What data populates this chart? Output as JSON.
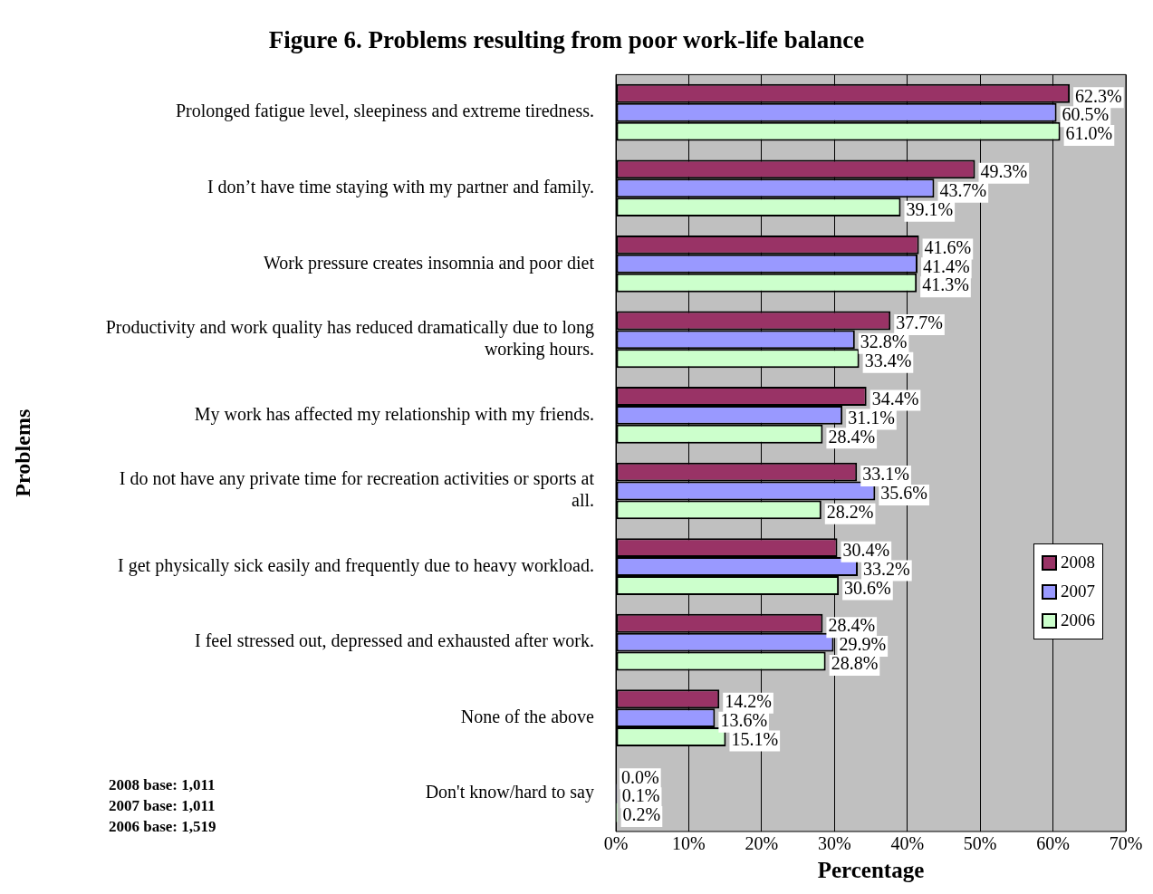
{
  "chart_data": {
    "type": "bar",
    "orientation": "horizontal",
    "title": "Figure 6. Problems resulting from poor work-life balance",
    "xlabel": "Percentage",
    "ylabel": "Problems",
    "categories": [
      "Prolonged fatigue level, sleepiness and extreme tiredness.",
      "I don’t have time staying with my partner and family.",
      "Work pressure creates insomnia and poor diet",
      "Productivity and work quality has reduced dramatically due to long working hours.",
      "My work has affected my relationship with my friends.",
      "I do not have any private time for recreation activities or sports at all.",
      "I get physically sick easily and frequently due to heavy workload.",
      "I feel stressed out, depressed and exhausted after work.",
      "None of the above",
      "Don't know/hard to say"
    ],
    "series": [
      {
        "name": "2008",
        "color": "#993366",
        "values": [
          62.3,
          49.3,
          41.6,
          37.7,
          34.4,
          33.1,
          30.4,
          28.4,
          14.2,
          0.0
        ],
        "value_labels": [
          "62.3%",
          "49.3%",
          "41.6%",
          "37.7%",
          "34.4%",
          "33.1%",
          "30.4%",
          "28.4%",
          "14.2%",
          "0.0%"
        ]
      },
      {
        "name": "2007",
        "color": "#9999ff",
        "values": [
          60.5,
          43.7,
          41.4,
          32.8,
          31.1,
          35.6,
          33.2,
          29.9,
          13.6,
          0.1
        ],
        "value_labels": [
          "60.5%",
          "43.7%",
          "41.4%",
          "32.8%",
          "31.1%",
          "35.6%",
          "33.2%",
          "29.9%",
          "13.6%",
          "0.1%"
        ]
      },
      {
        "name": "2006",
        "color": "#ccffcc",
        "values": [
          61.0,
          39.1,
          41.3,
          33.4,
          28.4,
          28.2,
          30.6,
          28.8,
          15.1,
          0.2
        ],
        "value_labels": [
          "61.0%",
          "39.1%",
          "41.3%",
          "33.4%",
          "28.4%",
          "28.2%",
          "30.6%",
          "28.8%",
          "15.1%",
          "0.2%"
        ]
      }
    ],
    "xlim": [
      0,
      70
    ],
    "xticks": [
      {
        "value": 0,
        "label": "0%"
      },
      {
        "value": 10,
        "label": "10%"
      },
      {
        "value": 20,
        "label": "20%"
      },
      {
        "value": 30,
        "label": "30%"
      },
      {
        "value": 40,
        "label": "40%"
      },
      {
        "value": 50,
        "label": "50%"
      },
      {
        "value": 60,
        "label": "60%"
      },
      {
        "value": 70,
        "label": "70%"
      }
    ],
    "grid": "x",
    "legend": "right",
    "annotations": [
      "2008 base: 1,011",
      "2007 base: 1,011",
      "2006 base: 1,519"
    ]
  }
}
